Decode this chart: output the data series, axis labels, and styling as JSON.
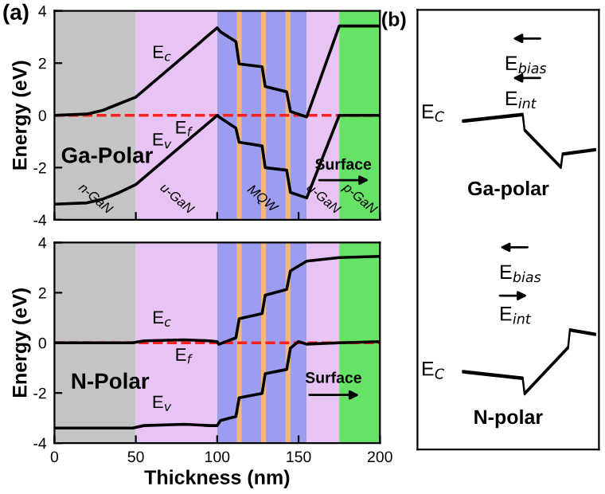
{
  "chart_data": [
    {
      "type": "line",
      "ylabel": "Energy (eV)",
      "ylim": [
        -4,
        4
      ],
      "yticks": [
        -4,
        -2,
        0,
        2,
        4
      ],
      "xlim": [
        0,
        200
      ],
      "xticks": [
        0,
        50,
        100,
        150,
        200
      ],
      "tick_labels": "y",
      "legend": false,
      "grid": false,
      "marker": "none",
      "line_style": "solid",
      "annotations": [
        "(a)",
        "Ga-Polar",
        "Surface"
      ],
      "series": [
        {
          "name": "E$_{c}$",
          "color": "#000000",
          "x": [
            0,
            20,
            30,
            40,
            50,
            100,
            102,
            111.5,
            113.5,
            127.6,
            129.5,
            142.7,
            145,
            155,
            175,
            200
          ],
          "values": [
            0,
            0.05,
            0.2,
            0.45,
            0.7,
            3.35,
            3.2,
            2.82,
            1.97,
            1.86,
            1.11,
            0.9,
            0.15,
            -0.06,
            3.42,
            3.42
          ]
        },
        {
          "name": "E$_{v}$",
          "color": "#000000",
          "x": [
            0,
            20,
            30,
            40,
            50,
            100,
            102,
            111.5,
            113.5,
            127.6,
            129.5,
            142.7,
            145,
            155,
            175,
            200
          ],
          "values": [
            -3.4,
            -3.35,
            -3.2,
            -2.95,
            -2.65,
            0,
            -0.1,
            -0.49,
            -1.03,
            -1.17,
            -2.0,
            -2.1,
            -2.95,
            -3.16,
            0,
            0
          ]
        }
      ],
      "ref_lines": [
        {
          "axis": "y",
          "value": 0,
          "label": "E$_{f}$",
          "color": "#ff2020",
          "line_style": "dashed"
        }
      ],
      "bands": [
        {
          "axis": "x",
          "from": 0,
          "to": 50,
          "label": "n-GaN",
          "color": "#c4c4c4"
        },
        {
          "axis": "x",
          "from": 50,
          "to": 100,
          "label": "u-GaN",
          "color": "#e8c4f4"
        },
        {
          "axis": "x",
          "from": 100,
          "to": 155,
          "label": "MQW",
          "color": "#9c9cf0"
        },
        {
          "axis": "x",
          "from": 112,
          "to": 115,
          "color": "#f5b878"
        },
        {
          "axis": "x",
          "from": 127,
          "to": 130,
          "color": "#f5b878"
        },
        {
          "axis": "x",
          "from": 142,
          "to": 145,
          "color": "#f5b878"
        },
        {
          "axis": "x",
          "from": 155,
          "to": 175,
          "label": "u-GaN",
          "color": "#e8c4f4"
        },
        {
          "axis": "x",
          "from": 175,
          "to": 200,
          "label": "p-GaN",
          "color": "#66e266"
        }
      ]
    },
    {
      "type": "line",
      "xlabel": "Thickness (nm)",
      "ylabel": "Energy (eV)",
      "ylim": [
        -4,
        4
      ],
      "yticks": [
        -4,
        -2,
        0,
        2,
        4
      ],
      "xlim": [
        0,
        200
      ],
      "xticks": [
        0,
        50,
        100,
        150,
        200
      ],
      "legend": false,
      "grid": false,
      "marker": "none",
      "line_style": "solid",
      "annotations": [
        "N-Polar",
        "Surface"
      ],
      "series": [
        {
          "name": "E$_{c}$",
          "color": "#000000",
          "x": [
            0,
            48,
            55,
            80,
            95,
            100,
            101,
            111.5,
            113.5,
            127.6,
            129.5,
            142.7,
            145,
            155,
            175,
            200
          ],
          "values": [
            0,
            0,
            0.08,
            0.12,
            0.08,
            0.05,
            -0.06,
            0.2,
            0.96,
            1.17,
            1.9,
            2.13,
            2.87,
            3.26,
            3.4,
            3.45
          ]
        },
        {
          "name": "E$_{v}$",
          "color": "#000000",
          "x": [
            0,
            48,
            55,
            80,
            95,
            100,
            102,
            111.5,
            113.5,
            127.6,
            129.5,
            142.7,
            145,
            150,
            155,
            175,
            200
          ],
          "values": [
            -3.4,
            -3.4,
            -3.3,
            -3.25,
            -3.3,
            -3.3,
            -3.1,
            -2.94,
            -2.19,
            -2.02,
            -1.23,
            -1.06,
            -0.21,
            0.05,
            -0.05,
            0,
            0.05
          ]
        }
      ],
      "ref_lines": [
        {
          "axis": "y",
          "value": 0,
          "label": "E$_{f}$",
          "color": "#ff2020",
          "line_style": "dashed"
        }
      ],
      "bands": [
        {
          "axis": "x",
          "from": 0,
          "to": 50,
          "color": "#c4c4c4"
        },
        {
          "axis": "x",
          "from": 50,
          "to": 100,
          "color": "#e8c4f4"
        },
        {
          "axis": "x",
          "from": 100,
          "to": 155,
          "color": "#9c9cf0"
        },
        {
          "axis": "x",
          "from": 112,
          "to": 115,
          "color": "#f5b878"
        },
        {
          "axis": "x",
          "from": 127,
          "to": 130,
          "color": "#f5b878"
        },
        {
          "axis": "x",
          "from": 142,
          "to": 145,
          "color": "#f5b878"
        },
        {
          "axis": "x",
          "from": 155,
          "to": 175,
          "color": "#e8c4f4"
        },
        {
          "axis": "x",
          "from": 175,
          "to": 200,
          "color": "#66e266"
        }
      ]
    },
    {
      "type": "other",
      "annotations": [
        "(b)",
        "E$_{bias}$",
        "E$_{int}$",
        "E$_{C}$",
        "Ga-polar",
        "E$_{bias}$",
        "E$_{int}$",
        "E$_{C}$",
        "N-polar"
      ]
    }
  ]
}
